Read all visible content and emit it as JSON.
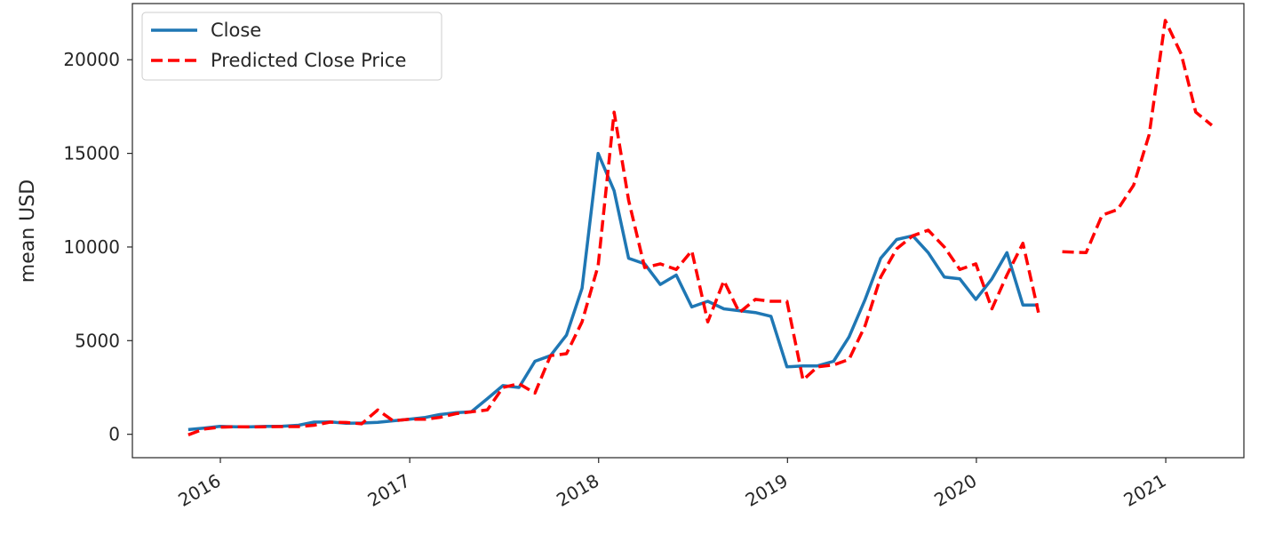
{
  "chart_data": {
    "type": "line",
    "title": "",
    "xlabel": "",
    "ylabel": "mean USD",
    "x_ticks": [
      "2016",
      "2017",
      "2018",
      "2019",
      "2020",
      "2021"
    ],
    "y_ticks": [
      "0",
      "5000",
      "10000",
      "15000",
      "20000"
    ],
    "ylim": [
      -1250,
      23000
    ],
    "xlim": [
      "2015-07-15",
      "2021-06-01"
    ],
    "grid": false,
    "legend": {
      "placement": "top-left",
      "entries": [
        "Close",
        "Predicted Close Price"
      ]
    },
    "colors": {
      "close": "#1f77b4",
      "predicted": "#ff0000"
    },
    "series": [
      {
        "name": "Close",
        "style": "solid",
        "color": "#1f77b4",
        "points": [
          [
            "2015-10-31",
            250
          ],
          [
            "2015-11-30",
            330
          ],
          [
            "2015-12-31",
            420
          ],
          [
            "2016-01-31",
            400
          ],
          [
            "2016-02-29",
            400
          ],
          [
            "2016-03-31",
            420
          ],
          [
            "2016-04-30",
            430
          ],
          [
            "2016-05-31",
            480
          ],
          [
            "2016-06-30",
            650
          ],
          [
            "2016-07-31",
            660
          ],
          [
            "2016-08-31",
            590
          ],
          [
            "2016-09-30",
            600
          ],
          [
            "2016-10-31",
            640
          ],
          [
            "2016-11-30",
            720
          ],
          [
            "2016-12-31",
            800
          ],
          [
            "2017-01-31",
            900
          ],
          [
            "2017-02-28",
            1050
          ],
          [
            "2017-03-31",
            1150
          ],
          [
            "2017-04-30",
            1200
          ],
          [
            "2017-05-31",
            1900
          ],
          [
            "2017-06-30",
            2600
          ],
          [
            "2017-07-31",
            2500
          ],
          [
            "2017-08-31",
            3900
          ],
          [
            "2017-09-30",
            4200
          ],
          [
            "2017-10-31",
            5300
          ],
          [
            "2017-11-30",
            7800
          ],
          [
            "2017-12-31",
            15000
          ],
          [
            "2018-01-31",
            13000
          ],
          [
            "2018-02-28",
            9400
          ],
          [
            "2018-03-31",
            9100
          ],
          [
            "2018-04-30",
            8000
          ],
          [
            "2018-05-31",
            8500
          ],
          [
            "2018-06-30",
            6800
          ],
          [
            "2018-07-31",
            7100
          ],
          [
            "2018-08-31",
            6700
          ],
          [
            "2018-09-30",
            6600
          ],
          [
            "2018-10-31",
            6500
          ],
          [
            "2018-11-30",
            6300
          ],
          [
            "2018-12-31",
            3600
          ],
          [
            "2019-01-31",
            3650
          ],
          [
            "2019-02-28",
            3650
          ],
          [
            "2019-03-31",
            3900
          ],
          [
            "2019-04-30",
            5200
          ],
          [
            "2019-05-31",
            7200
          ],
          [
            "2019-06-30",
            9400
          ],
          [
            "2019-07-31",
            10400
          ],
          [
            "2019-08-31",
            10600
          ],
          [
            "2019-09-30",
            9700
          ],
          [
            "2019-10-31",
            8400
          ],
          [
            "2019-11-30",
            8300
          ],
          [
            "2019-12-31",
            7200
          ],
          [
            "2020-01-31",
            8300
          ],
          [
            "2020-02-29",
            9700
          ],
          [
            "2020-03-31",
            6900
          ],
          [
            "2020-04-30",
            6900
          ]
        ]
      },
      {
        "name": "Predicted Close Price",
        "style": "dashed",
        "color": "#ff0000",
        "segments": [
          [
            [
              "2015-10-31",
              -30
            ],
            [
              "2015-11-30",
              280
            ],
            [
              "2015-12-31",
              380
            ],
            [
              "2016-01-31",
              400
            ],
            [
              "2016-02-29",
              390
            ],
            [
              "2016-03-31",
              400
            ],
            [
              "2016-04-30",
              410
            ],
            [
              "2016-05-31",
              410
            ],
            [
              "2016-06-30",
              480
            ],
            [
              "2016-07-31",
              650
            ],
            [
              "2016-08-31",
              630
            ],
            [
              "2016-09-30",
              560
            ],
            [
              "2016-10-31",
              1300
            ],
            [
              "2016-11-30",
              720
            ],
            [
              "2016-12-31",
              800
            ],
            [
              "2017-01-31",
              800
            ],
            [
              "2017-02-28",
              900
            ],
            [
              "2017-03-31",
              1100
            ],
            [
              "2017-04-30",
              1200
            ],
            [
              "2017-05-31",
              1300
            ],
            [
              "2017-06-30",
              2500
            ],
            [
              "2017-07-31",
              2700
            ],
            [
              "2017-08-31",
              2200
            ],
            [
              "2017-09-30",
              4200
            ],
            [
              "2017-10-31",
              4300
            ],
            [
              "2017-11-30",
              6000
            ],
            [
              "2017-12-31",
              9000
            ],
            [
              "2018-01-31",
              17200
            ],
            [
              "2018-02-28",
              12500
            ],
            [
              "2018-03-31",
              8900
            ],
            [
              "2018-04-30",
              9100
            ],
            [
              "2018-05-31",
              8800
            ],
            [
              "2018-06-30",
              9800
            ],
            [
              "2018-07-31",
              6000
            ],
            [
              "2018-08-31",
              8200
            ],
            [
              "2018-09-30",
              6500
            ],
            [
              "2018-10-31",
              7200
            ],
            [
              "2018-11-30",
              7100
            ],
            [
              "2018-12-31",
              7100
            ],
            [
              "2019-01-31",
              2900
            ],
            [
              "2019-02-28",
              3600
            ],
            [
              "2019-03-31",
              3700
            ],
            [
              "2019-04-30",
              4000
            ],
            [
              "2019-05-31",
              5800
            ],
            [
              "2019-06-30",
              8400
            ],
            [
              "2019-07-31",
              9900
            ],
            [
              "2019-08-31",
              10600
            ],
            [
              "2019-09-30",
              10900
            ],
            [
              "2019-10-31",
              10000
            ],
            [
              "2019-11-30",
              8800
            ],
            [
              "2019-12-31",
              9100
            ],
            [
              "2020-01-31",
              6700
            ],
            [
              "2020-02-29",
              8500
            ],
            [
              "2020-03-31",
              10200
            ],
            [
              "2020-04-30",
              6500
            ]
          ],
          [
            [
              "2020-06-15",
              9750
            ],
            [
              "2020-07-31",
              9700
            ],
            [
              "2020-08-31",
              11700
            ],
            [
              "2020-09-30",
              12000
            ],
            [
              "2020-10-31",
              13300
            ],
            [
              "2020-11-30",
              16000
            ],
            [
              "2020-12-31",
              22100
            ],
            [
              "2021-01-31",
              20300
            ],
            [
              "2021-02-28",
              17200
            ],
            [
              "2021-03-31",
              16500
            ]
          ]
        ]
      }
    ]
  }
}
